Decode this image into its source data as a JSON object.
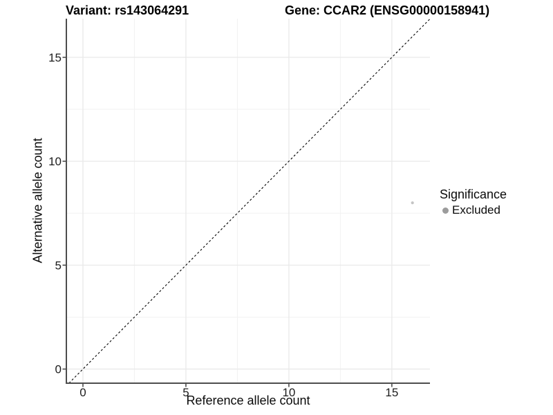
{
  "header": {
    "variant_title": "Variant: rs143064291",
    "gene_title": "Gene: CCAR2 (ENSG00000158941)"
  },
  "chart_data": {
    "type": "scatter",
    "xlabel": "Reference allele count",
    "ylabel": "Alternative allele count",
    "x_ticks": [
      0,
      5,
      10,
      15
    ],
    "y_ticks": [
      0,
      5,
      10,
      15
    ],
    "x_minor_ticks": [
      2.5,
      7.5,
      12.5
    ],
    "y_minor_ticks": [
      2.5,
      7.5,
      12.5
    ],
    "xlim": [
      -0.805,
      16.85
    ],
    "ylim": [
      -0.68,
      16.86
    ],
    "grid": true,
    "identity_line": {
      "type": "abline",
      "slope": 1,
      "intercept": 0,
      "style": "dashed"
    },
    "points": [
      {
        "x": 16,
        "y": 8,
        "series": "Excluded",
        "radius": 2.1
      }
    ],
    "legend": {
      "position": "right",
      "title": "Significance",
      "items": [
        {
          "label": "Excluded",
          "color": "#9c9c9c"
        }
      ]
    },
    "colors": {
      "point": "#c4c4c4",
      "identity_line": "#000000",
      "axis_line": "#4d4d4d",
      "tick_mark": "#333333",
      "grid_major": "#e9e9e9",
      "grid_minor": "#f2f2f2",
      "tick_text": "#1c1c1c",
      "background": "#ffffff"
    }
  }
}
